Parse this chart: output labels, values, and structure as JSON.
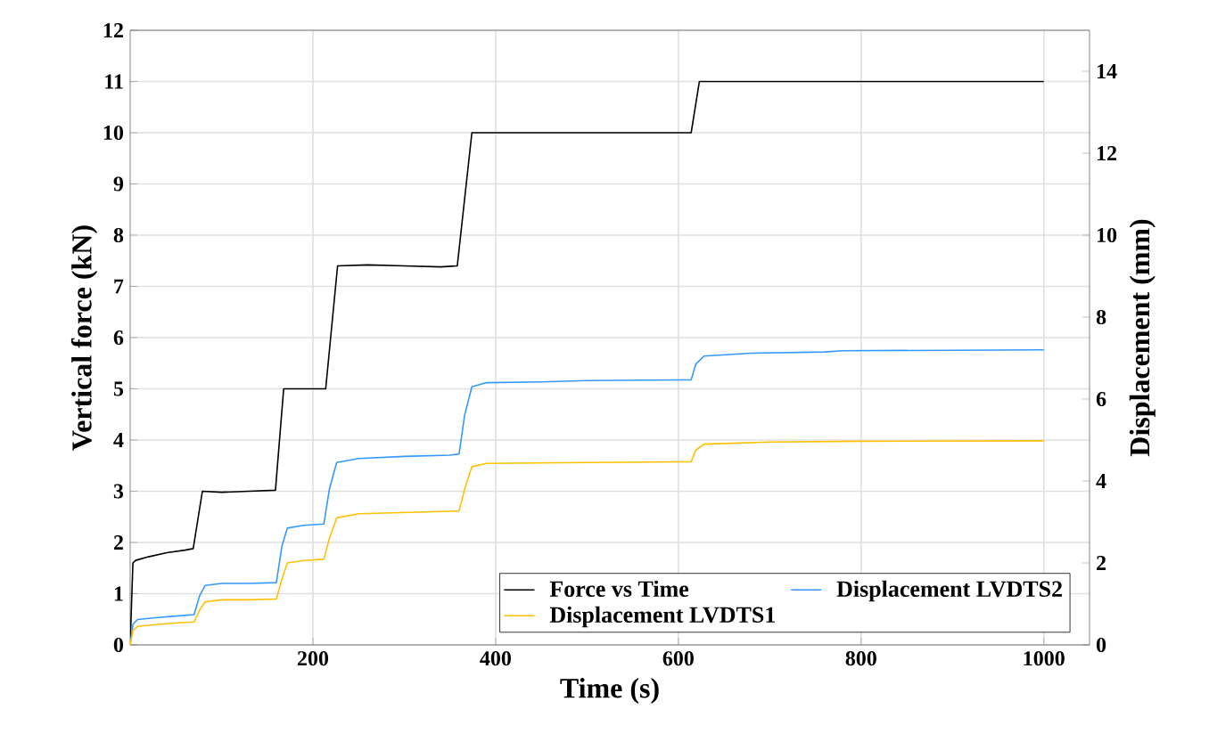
{
  "chart_data": {
    "type": "line",
    "xlabel": "Time (s)",
    "ylabel": "Vertical force (kN)",
    "y2label": "Displacement (mm)",
    "xlim": [
      0,
      1050
    ],
    "xticks": [
      200,
      400,
      600,
      800,
      1000
    ],
    "ylim": [
      0,
      12
    ],
    "yticks": [
      0,
      1,
      2,
      3,
      4,
      5,
      6,
      7,
      8,
      9,
      10,
      11,
      12
    ],
    "y2lim": [
      0,
      15
    ],
    "y2ticks": [
      0,
      2,
      4,
      6,
      8,
      10,
      12,
      14
    ],
    "grid": true,
    "legend": "bottom right",
    "series": [
      {
        "name": "Force vs Time",
        "color": "#000000",
        "x": [
          0,
          3,
          6,
          20,
          40,
          60,
          69,
          79,
          100,
          130,
          159,
          168,
          190,
          214,
          227,
          260,
          300,
          340,
          358,
          374,
          420,
          480,
          540,
          614,
          623,
          700,
          800,
          900,
          1000
        ],
        "values": [
          0,
          1.6,
          1.65,
          1.72,
          1.8,
          1.85,
          1.88,
          3.0,
          2.98,
          3.0,
          3.02,
          5.0,
          5.0,
          5.0,
          7.4,
          7.42,
          7.4,
          7.38,
          7.4,
          10.0,
          10.0,
          10.0,
          10.0,
          10.0,
          11.0,
          11.0,
          11.0,
          11.0,
          11.0
        ]
      },
      {
        "name": "Displacement LVDTS2",
        "color": "#3399ff",
        "axis": "y2",
        "x": [
          0,
          3,
          8,
          30,
          60,
          70,
          76,
          82,
          100,
          130,
          160,
          166,
          172,
          190,
          212,
          218,
          226,
          250,
          300,
          350,
          360,
          366,
          374,
          390,
          450,
          500,
          614,
          619,
          628,
          680,
          760,
          780,
          1000
        ],
        "values": [
          0,
          0.5,
          0.62,
          0.67,
          0.72,
          0.74,
          1.2,
          1.45,
          1.5,
          1.5,
          1.52,
          2.4,
          2.85,
          2.92,
          2.95,
          3.8,
          4.45,
          4.55,
          4.6,
          4.63,
          4.66,
          5.6,
          6.3,
          6.4,
          6.42,
          6.45,
          6.47,
          6.85,
          7.05,
          7.12,
          7.15,
          7.18,
          7.2
        ]
      },
      {
        "name": "Displacement LVDTS1",
        "color": "#ffc000",
        "axis": "y2",
        "x": [
          0,
          3,
          8,
          30,
          60,
          70,
          76,
          82,
          100,
          130,
          160,
          166,
          172,
          190,
          212,
          218,
          226,
          250,
          300,
          350,
          360,
          366,
          374,
          390,
          500,
          614,
          619,
          628,
          700,
          800,
          1000
        ],
        "values": [
          0,
          0.35,
          0.45,
          0.5,
          0.55,
          0.56,
          0.85,
          1.05,
          1.1,
          1.1,
          1.12,
          1.6,
          2.0,
          2.06,
          2.09,
          2.6,
          3.1,
          3.2,
          3.23,
          3.26,
          3.27,
          3.8,
          4.35,
          4.43,
          4.45,
          4.47,
          4.75,
          4.9,
          4.95,
          4.97,
          4.98
        ]
      }
    ]
  }
}
